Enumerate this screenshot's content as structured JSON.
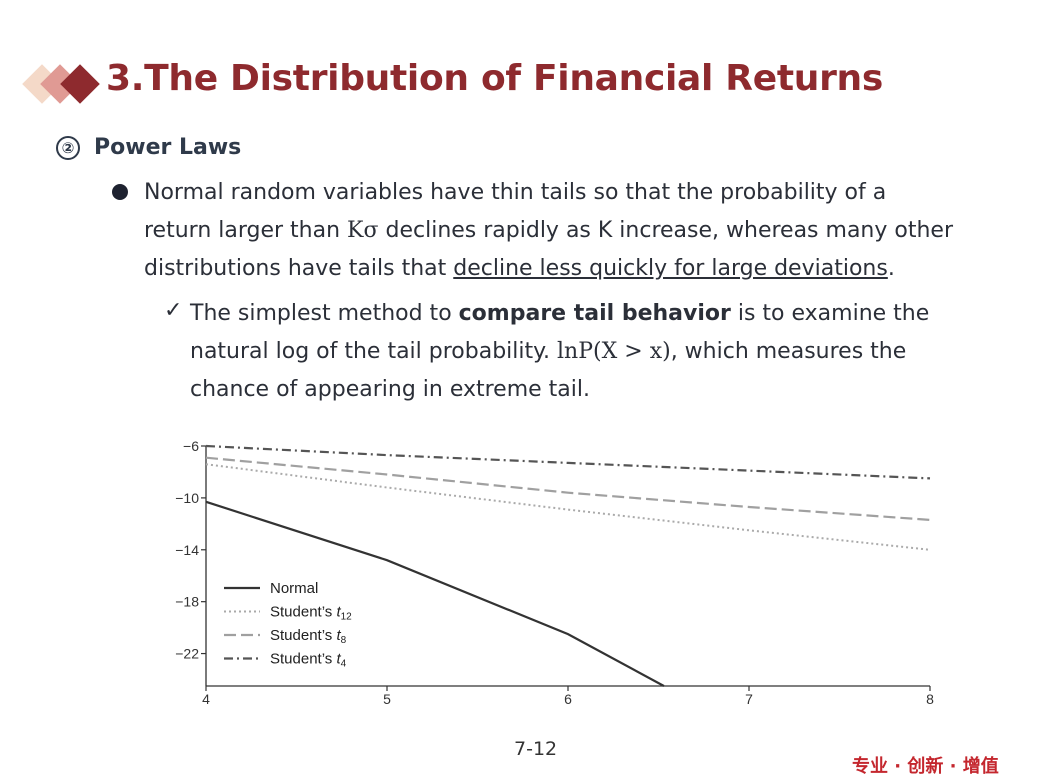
{
  "slide": {
    "title": "3.The Distribution of Financial Returns",
    "subhead_number": "②",
    "subhead": "Power Laws",
    "bullet_line1": "Normal random variables have thin tails so that the probability of a",
    "bullet_line2a": "return larger than ",
    "bullet_line2_math": "Kσ",
    "bullet_line2b": " declines rapidly as K increase, whereas many other",
    "bullet_line3a": "distributions have tails that ",
    "bullet_line3_underline": "decline less quickly for large deviations",
    "bullet_line3b": ".",
    "check_mark": "✓",
    "sub_line1a": "The simplest method to ",
    "sub_line1_bold": "compare tail behavior",
    "sub_line1b": " is to examine the",
    "sub_line2a": "natural log of the tail probability.  ",
    "sub_line2_math": "lnP(X > x)",
    "sub_line2b": ", which measures the",
    "sub_line3": "chance of appearing in extreme tail.",
    "page_number": "7-12",
    "slogan": "专业 · 创新 · 增值"
  },
  "colors": {
    "title": "#8e2a2e",
    "slogan": "#c4272e",
    "text": "#2b2f38"
  },
  "chart_data": {
    "type": "line",
    "x": [
      4,
      5,
      6,
      7,
      8
    ],
    "xlim": [
      4,
      8
    ],
    "ylim": [
      -24.5,
      -6
    ],
    "xticks": [
      "4",
      "5",
      "6",
      "7",
      "8"
    ],
    "yticks": [
      "−6",
      "−10",
      "−14",
      "−18",
      "−22"
    ],
    "ytick_values": [
      -6,
      -10,
      -14,
      -18,
      -22
    ],
    "legend_position": "lower-left",
    "series": [
      {
        "name": "Normal",
        "style": "solid",
        "color": "#333333",
        "points": [
          [
            4,
            -10.3
          ],
          [
            5,
            -14.8
          ],
          [
            6,
            -20.5
          ],
          [
            6.53,
            -24.5
          ]
        ]
      },
      {
        "name": "Student's t12",
        "name_base": "Student’s ",
        "name_var": "t",
        "name_sub": "12",
        "style": "dotted",
        "color": "#aaaaaa",
        "points": [
          [
            4,
            -7.4
          ],
          [
            5,
            -9.2
          ],
          [
            6,
            -10.9
          ],
          [
            7,
            -12.5
          ],
          [
            8,
            -14.0
          ]
        ]
      },
      {
        "name": "Student's t8",
        "name_base": "Student’s ",
        "name_var": "t",
        "name_sub": "8",
        "style": "dashed",
        "color": "#a0a0a0",
        "points": [
          [
            4,
            -6.9
          ],
          [
            5,
            -8.2
          ],
          [
            6,
            -9.6
          ],
          [
            7,
            -10.7
          ],
          [
            8,
            -11.7
          ]
        ]
      },
      {
        "name": "Student's t4",
        "name_base": "Student’s ",
        "name_var": "t",
        "name_sub": "4",
        "style": "dashdot",
        "color": "#555555",
        "points": [
          [
            4,
            -6.0
          ],
          [
            5,
            -6.7
          ],
          [
            6,
            -7.3
          ],
          [
            7,
            -7.9
          ],
          [
            8,
            -8.5
          ]
        ]
      }
    ]
  }
}
